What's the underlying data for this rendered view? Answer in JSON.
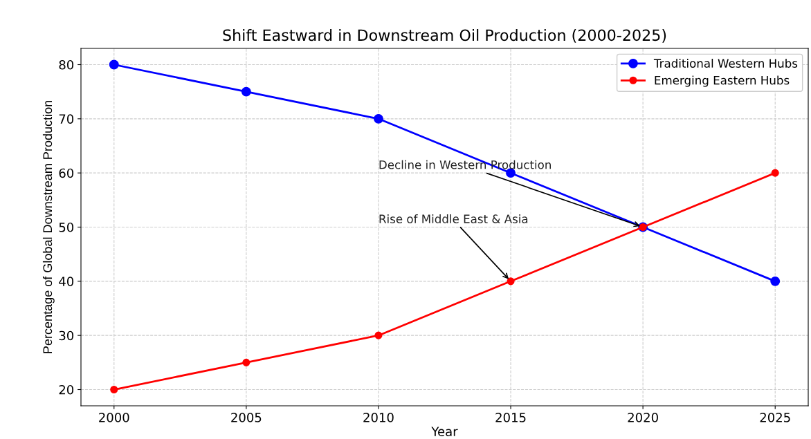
{
  "chart_data": {
    "type": "line",
    "title": "Shift Eastward in Downstream Oil Production (2000-2025)",
    "xlabel": "Year",
    "ylabel": "Percentage of Global Downstream Production",
    "x": [
      2000,
      2005,
      2010,
      2015,
      2020,
      2025
    ],
    "series": [
      {
        "name": "Traditional Western Hubs",
        "color": "#0000ff",
        "values": [
          80,
          75,
          70,
          60,
          50,
          40
        ]
      },
      {
        "name": "Emerging Eastern Hubs",
        "color": "#ff0000",
        "values": [
          20,
          25,
          30,
          40,
          50,
          60
        ]
      }
    ],
    "xlim": [
      1998.75,
      2026.25
    ],
    "xticks": [
      2000,
      2005,
      2010,
      2015,
      2020,
      2025
    ],
    "ylim": [
      17,
      83
    ],
    "yticks": [
      20,
      30,
      40,
      50,
      60,
      70,
      80
    ],
    "annotations": [
      {
        "text": "Decline in Western Production",
        "x": 2020,
        "y": 50
      },
      {
        "text": "Rise of Middle East & Asia",
        "x": 2015,
        "y": 40
      }
    ],
    "grid": true,
    "legend": "top right",
    "marker": "circle",
    "line_style": "solid"
  }
}
